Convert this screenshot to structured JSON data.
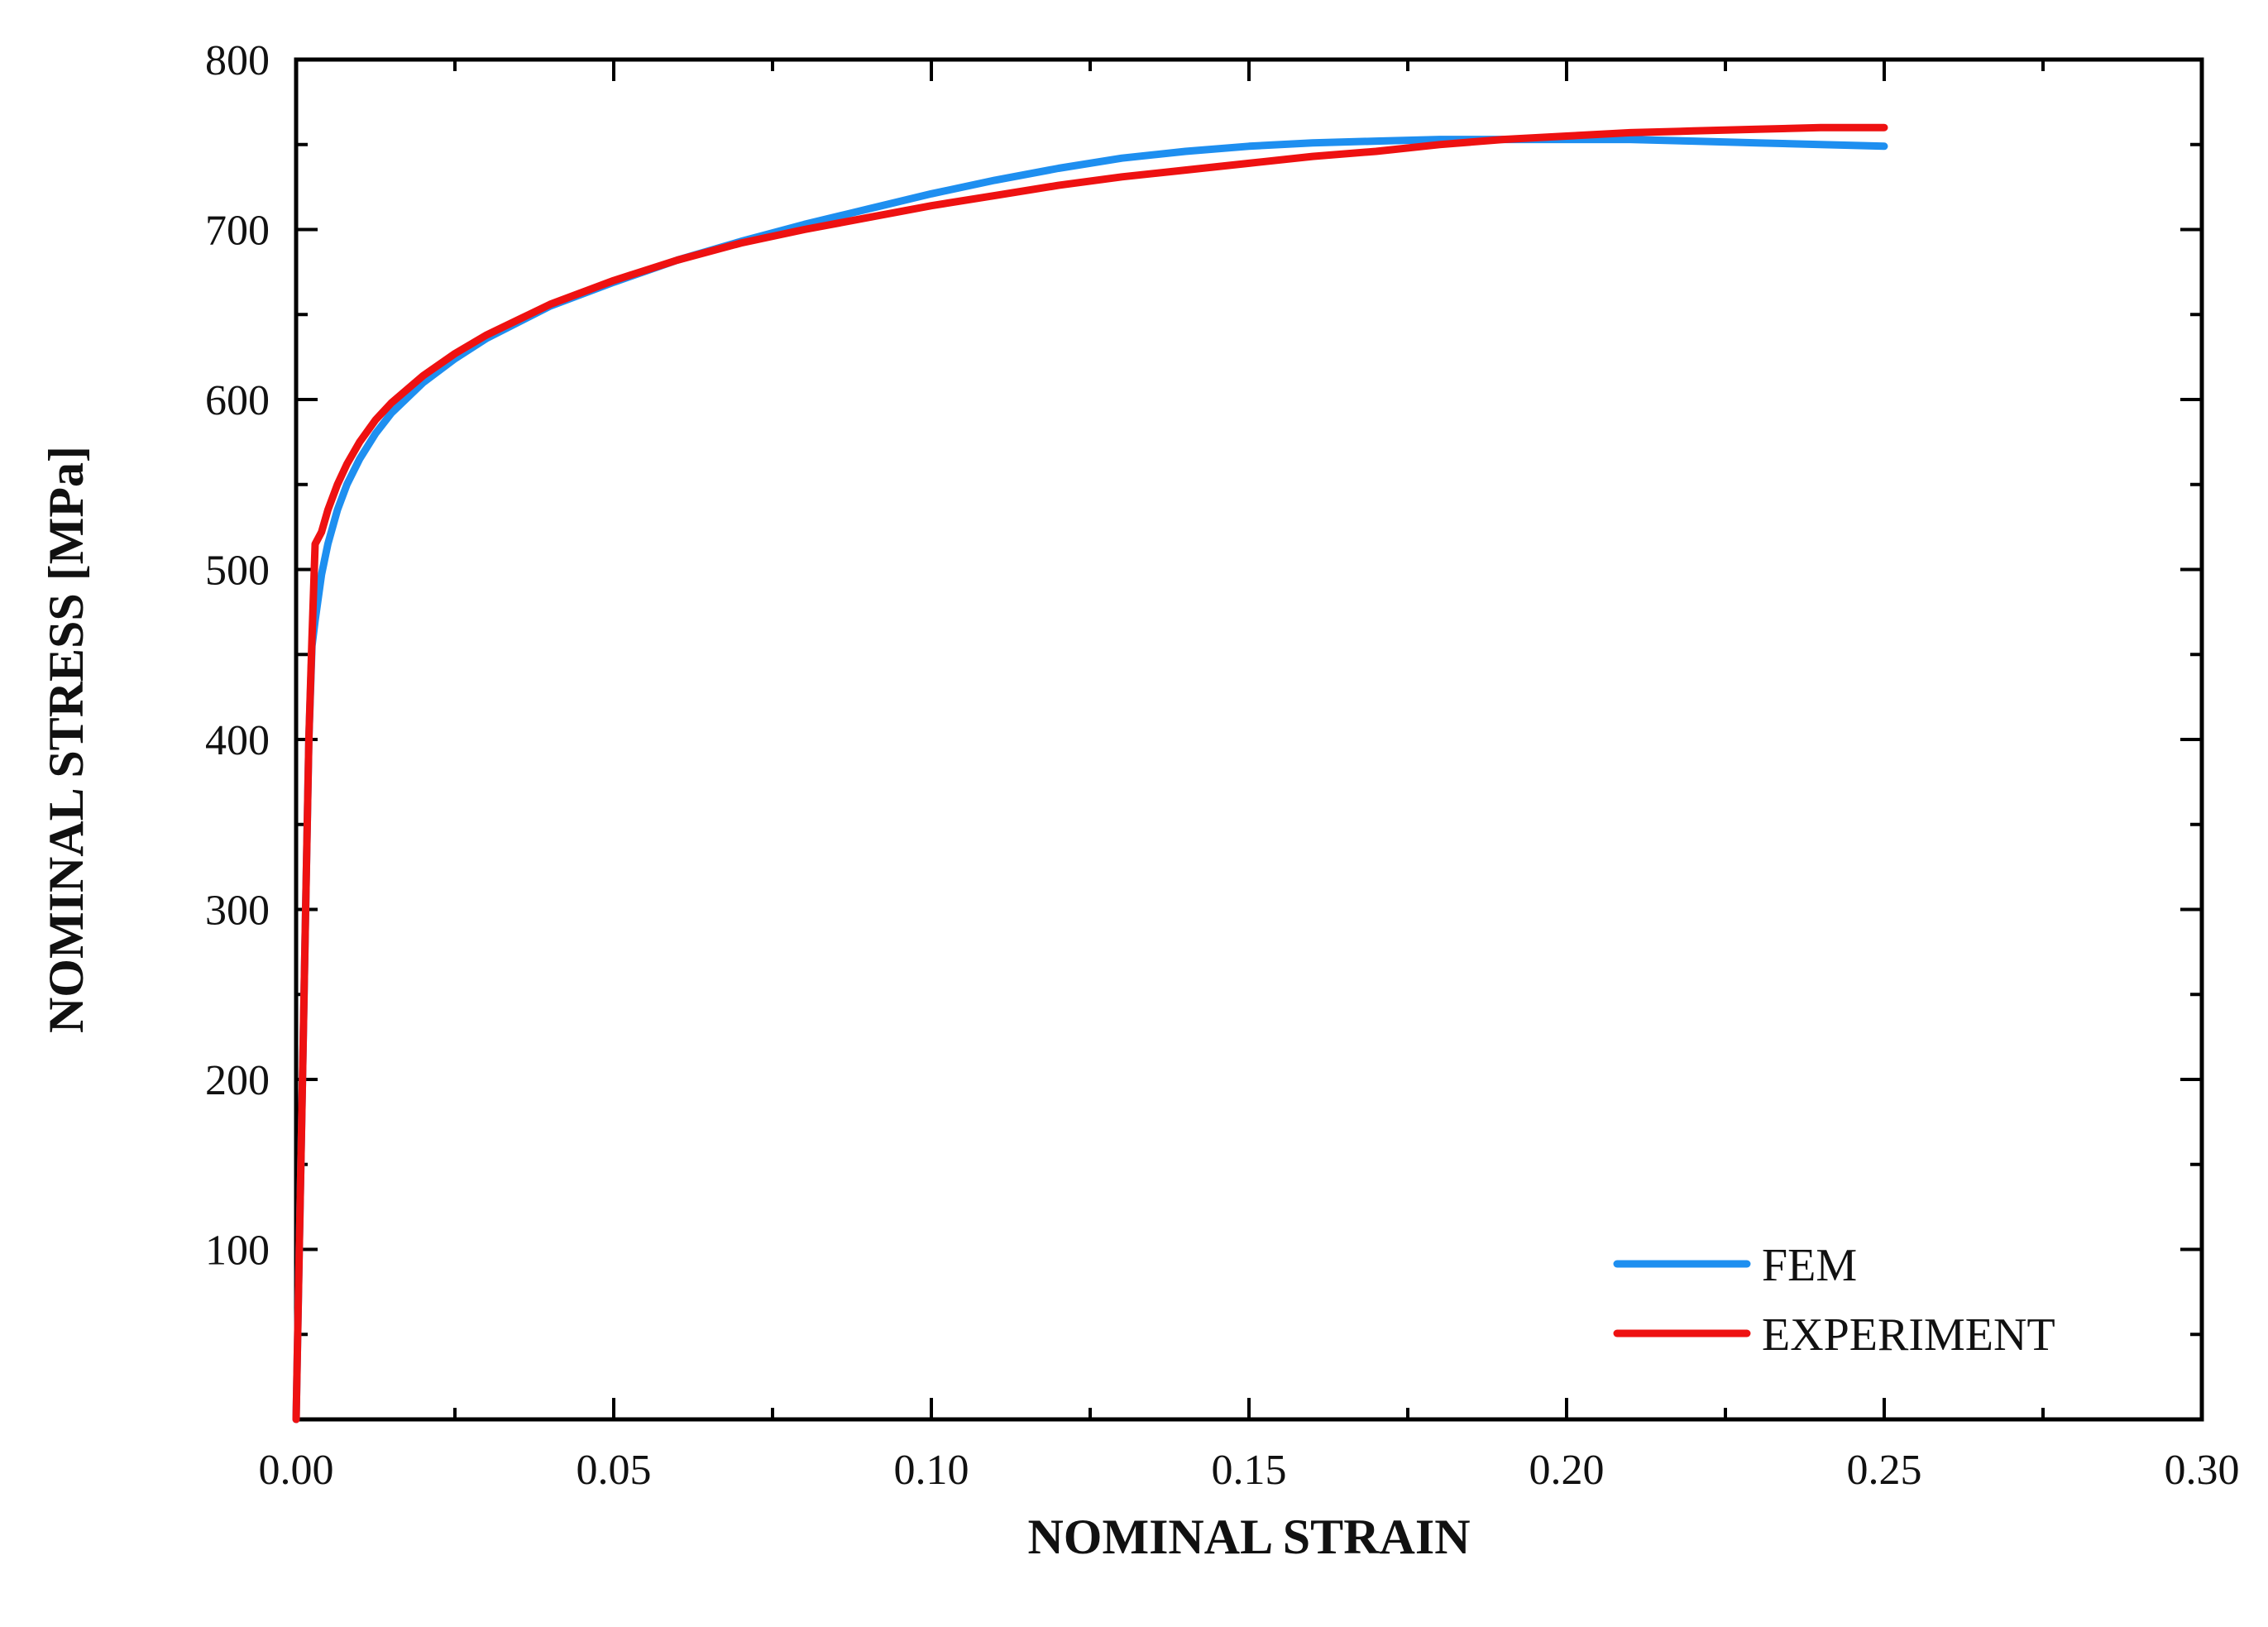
{
  "chart_data": {
    "type": "line",
    "title": "",
    "xlabel": "NOMINAL STRAIN",
    "ylabel": "NOMINAL STRESS [MPa]",
    "xlim": [
      0,
      0.3
    ],
    "ylim": [
      0,
      800
    ],
    "x_ticks": [
      "0.00",
      "0.05",
      "0.10",
      "0.15",
      "0.20",
      "0.25",
      "0.30"
    ],
    "x_tick_values": [
      0,
      0.05,
      0.1,
      0.15,
      0.2,
      0.25,
      0.3
    ],
    "y_ticks": [
      "100",
      "200",
      "300",
      "400",
      "500",
      "600",
      "700",
      "800"
    ],
    "y_tick_values": [
      100,
      200,
      300,
      400,
      500,
      600,
      700,
      800
    ],
    "grid": false,
    "legend_position": "bottom-right",
    "series": [
      {
        "name": "FEM",
        "color": "#1e8ff0",
        "x": [
          0,
          0.0005,
          0.001,
          0.0015,
          0.002,
          0.0025,
          0.003,
          0.004,
          0.005,
          0.0065,
          0.008,
          0.01,
          0.0125,
          0.015,
          0.02,
          0.025,
          0.03,
          0.04,
          0.05,
          0.06,
          0.07,
          0.08,
          0.09,
          0.1,
          0.11,
          0.12,
          0.13,
          0.14,
          0.15,
          0.16,
          0.17,
          0.18,
          0.19,
          0.2,
          0.21,
          0.22,
          0.23,
          0.24,
          0.25
        ],
        "y": [
          0,
          100,
          200,
          300,
          400,
          455,
          470,
          497,
          515,
          535,
          550,
          565,
          580,
          592,
          610,
          624,
          636,
          655,
          669,
          682,
          693,
          703,
          712,
          721,
          729,
          736,
          742,
          746,
          749,
          751,
          752,
          753,
          753,
          753,
          753,
          752,
          751,
          750,
          749
        ]
      },
      {
        "name": "EXPERIMENT",
        "color": "#ee1111",
        "x": [
          0,
          0.0005,
          0.001,
          0.0015,
          0.002,
          0.0025,
          0.003,
          0.004,
          0.005,
          0.0065,
          0.008,
          0.01,
          0.0125,
          0.015,
          0.02,
          0.025,
          0.03,
          0.04,
          0.05,
          0.06,
          0.07,
          0.08,
          0.09,
          0.1,
          0.11,
          0.12,
          0.13,
          0.14,
          0.15,
          0.16,
          0.17,
          0.18,
          0.19,
          0.2,
          0.21,
          0.22,
          0.23,
          0.24,
          0.25
        ],
        "y": [
          0,
          100,
          200,
          300,
          400,
          460,
          515,
          522,
          535,
          550,
          562,
          575,
          588,
          598,
          614,
          627,
          638,
          656,
          670,
          682,
          692,
          700,
          707,
          714,
          720,
          726,
          731,
          735,
          739,
          743,
          746,
          750,
          753,
          755,
          757,
          758,
          759,
          760,
          760
        ]
      }
    ]
  }
}
